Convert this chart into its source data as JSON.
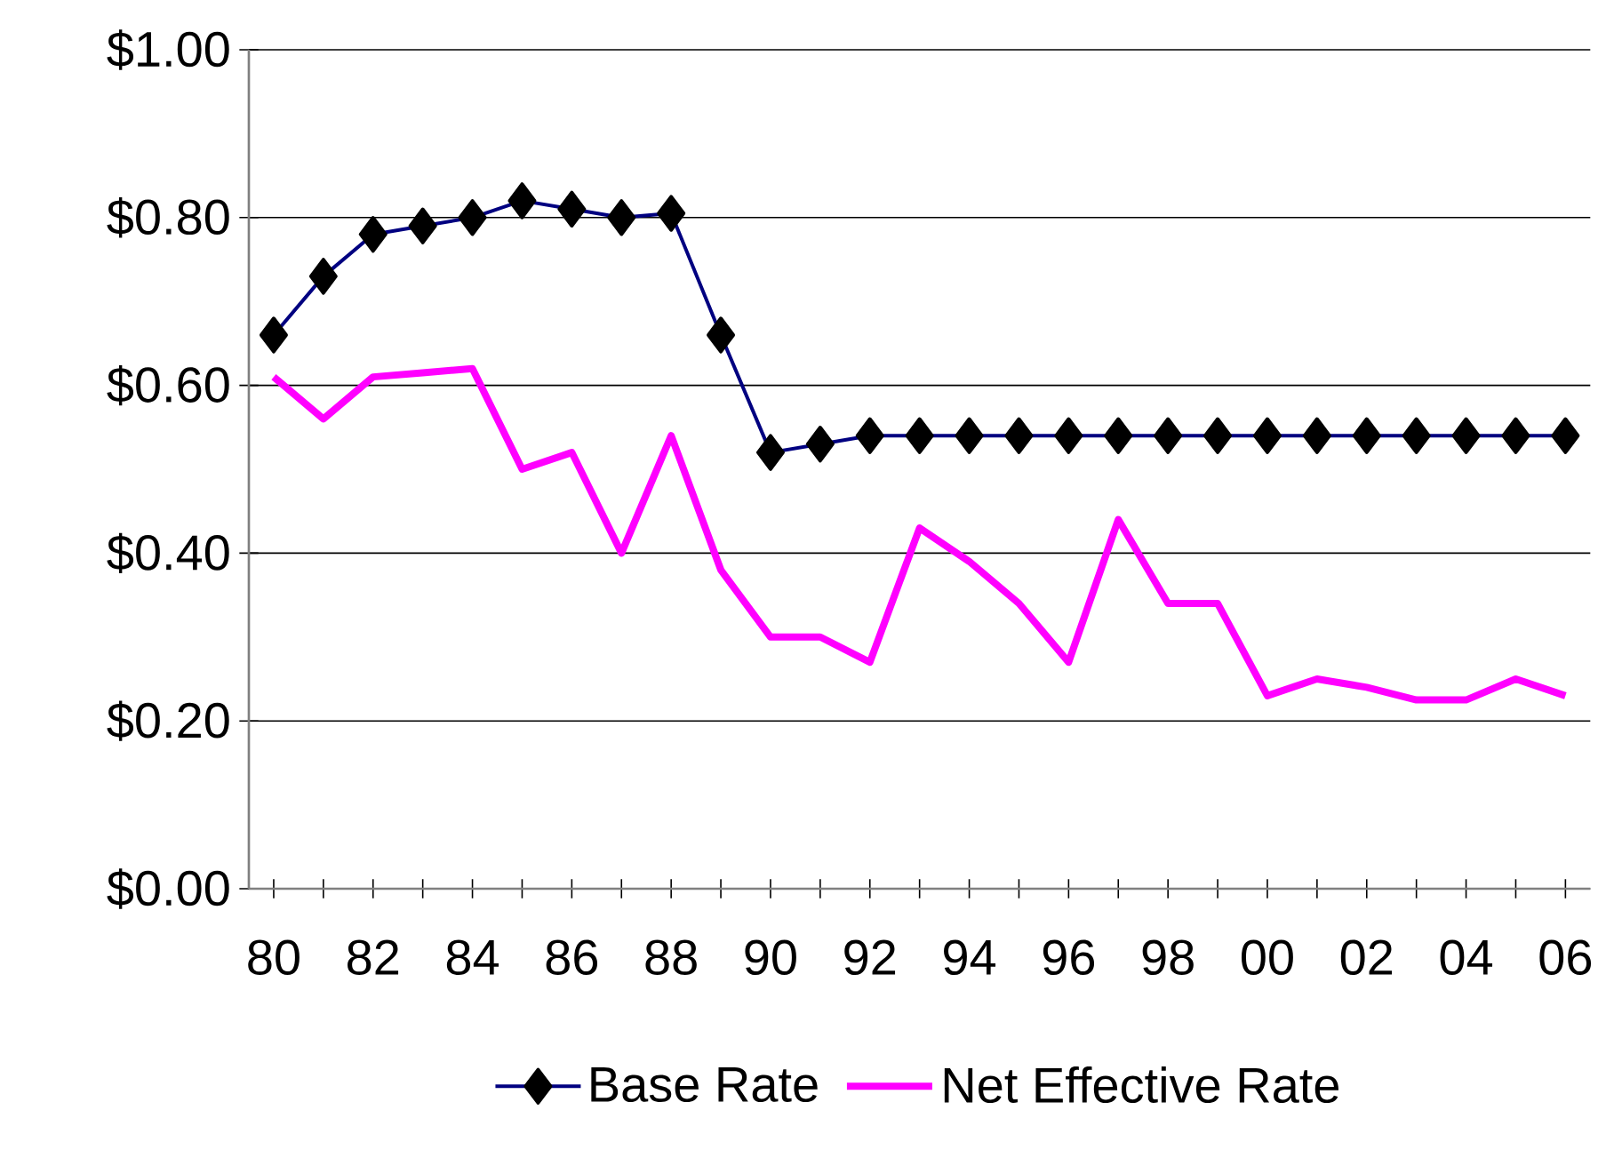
{
  "chart_data": {
    "type": "line",
    "categories": [
      "80",
      null,
      "82",
      null,
      "84",
      null,
      "86",
      null,
      "88",
      null,
      "90",
      null,
      "92",
      null,
      "94",
      null,
      "96",
      null,
      "98",
      null,
      "00",
      null,
      "02",
      null,
      "04",
      null,
      "06"
    ],
    "series": [
      {
        "name": "Base Rate",
        "color": "#000080",
        "marker": "diamond",
        "values": [
          0.66,
          0.73,
          0.78,
          0.79,
          0.8,
          0.82,
          0.81,
          0.8,
          0.805,
          0.66,
          0.52,
          0.53,
          0.54,
          0.54,
          0.54,
          0.54,
          0.54,
          0.54,
          0.54,
          0.54,
          0.54,
          0.54,
          0.54,
          0.54,
          0.54,
          0.54,
          0.54
        ]
      },
      {
        "name": "Net Effective Rate",
        "color": "#ff00ff",
        "marker": "none",
        "values": [
          0.61,
          0.56,
          0.61,
          0.615,
          0.62,
          0.5,
          0.52,
          0.4,
          0.54,
          0.38,
          0.3,
          0.3,
          0.27,
          0.43,
          0.39,
          0.34,
          0.27,
          0.44,
          0.34,
          0.34,
          0.23,
          0.25,
          0.24,
          0.225,
          0.225,
          0.25,
          0.23
        ]
      }
    ],
    "ylim": [
      0,
      1
    ],
    "yticks": [
      {
        "value": 0,
        "label": "$0.00"
      },
      {
        "value": 0.2,
        "label": "$0.20"
      },
      {
        "value": 0.4,
        "label": "$0.40"
      },
      {
        "value": 0.6,
        "label": "$0.60"
      },
      {
        "value": 0.8,
        "label": "$0.80"
      },
      {
        "value": 1,
        "label": "$1.00"
      }
    ],
    "grid": "y",
    "legend": "bottom"
  }
}
